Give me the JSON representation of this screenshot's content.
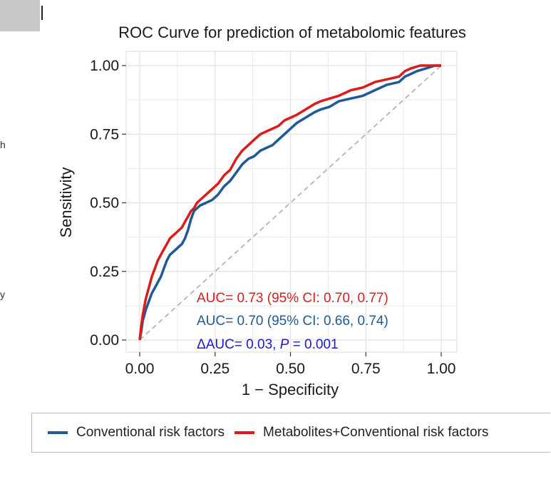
{
  "panel_fragments": {
    "left_1": "h",
    "left_2": "y"
  },
  "colors": {
    "conventional": "#1f5a96",
    "combined": "#d91c1c",
    "delta": "#1a1ac8",
    "diagonal": "#b3b3b3",
    "grid": "#e6e6e6"
  },
  "chart_data": {
    "type": "line",
    "title": "ROC Curve for prediction of metabolomic features",
    "xlabel": "1 − Specificity",
    "ylabel": "Sensitivity",
    "xlim": [
      0,
      1
    ],
    "ylim": [
      0,
      1
    ],
    "xticks": [
      "0.00",
      "0.25",
      "0.50",
      "0.75",
      "1.00"
    ],
    "yticks": [
      "0.00",
      "0.25",
      "0.50",
      "0.75",
      "1.00"
    ],
    "grid": true,
    "reference_line": "diagonal",
    "series": [
      {
        "name": "Conventional risk factors",
        "color_key": "conventional",
        "x": [
          0,
          0.005,
          0.01,
          0.02,
          0.03,
          0.04,
          0.05,
          0.06,
          0.07,
          0.08,
          0.09,
          0.1,
          0.11,
          0.12,
          0.13,
          0.14,
          0.15,
          0.16,
          0.17,
          0.18,
          0.19,
          0.2,
          0.22,
          0.24,
          0.26,
          0.28,
          0.3,
          0.32,
          0.34,
          0.36,
          0.38,
          0.4,
          0.42,
          0.44,
          0.46,
          0.48,
          0.5,
          0.52,
          0.55,
          0.58,
          0.6,
          0.63,
          0.66,
          0.7,
          0.74,
          0.78,
          0.82,
          0.86,
          0.88,
          0.9,
          0.92,
          0.95,
          0.98,
          1.0
        ],
        "y": [
          0,
          0.03,
          0.07,
          0.11,
          0.14,
          0.17,
          0.19,
          0.21,
          0.23,
          0.26,
          0.29,
          0.31,
          0.32,
          0.33,
          0.34,
          0.35,
          0.37,
          0.4,
          0.44,
          0.47,
          0.48,
          0.49,
          0.5,
          0.51,
          0.53,
          0.56,
          0.58,
          0.61,
          0.64,
          0.66,
          0.67,
          0.69,
          0.7,
          0.71,
          0.73,
          0.75,
          0.77,
          0.79,
          0.81,
          0.83,
          0.84,
          0.85,
          0.87,
          0.88,
          0.89,
          0.91,
          0.93,
          0.94,
          0.96,
          0.97,
          0.98,
          0.99,
          1.0,
          1.0
        ]
      },
      {
        "name": "Metabolites+Conventional risk factors",
        "color_key": "combined",
        "x": [
          0,
          0.005,
          0.01,
          0.015,
          0.02,
          0.03,
          0.04,
          0.05,
          0.06,
          0.07,
          0.08,
          0.09,
          0.1,
          0.11,
          0.12,
          0.13,
          0.14,
          0.15,
          0.16,
          0.17,
          0.18,
          0.19,
          0.2,
          0.22,
          0.24,
          0.26,
          0.28,
          0.3,
          0.32,
          0.34,
          0.36,
          0.38,
          0.4,
          0.42,
          0.44,
          0.46,
          0.48,
          0.5,
          0.52,
          0.55,
          0.58,
          0.6,
          0.63,
          0.66,
          0.7,
          0.74,
          0.78,
          0.82,
          0.86,
          0.88,
          0.9,
          0.93,
          0.96,
          1.0
        ],
        "y": [
          0,
          0.05,
          0.09,
          0.12,
          0.15,
          0.19,
          0.23,
          0.26,
          0.29,
          0.31,
          0.33,
          0.35,
          0.37,
          0.38,
          0.39,
          0.4,
          0.41,
          0.43,
          0.45,
          0.47,
          0.48,
          0.5,
          0.51,
          0.53,
          0.55,
          0.57,
          0.6,
          0.62,
          0.66,
          0.69,
          0.71,
          0.73,
          0.75,
          0.76,
          0.77,
          0.78,
          0.8,
          0.81,
          0.82,
          0.84,
          0.86,
          0.87,
          0.88,
          0.89,
          0.91,
          0.92,
          0.94,
          0.95,
          0.96,
          0.98,
          0.99,
          1.0,
          1.0,
          1.0
        ]
      }
    ],
    "annotations": [
      {
        "text": "AUC= 0.73 (95% CI: 0.70, 0.77)",
        "color_key": "combined"
      },
      {
        "text": "AUC= 0.70 (95% CI: 0.66, 0.74)",
        "color_key": "conventional"
      },
      {
        "prefix": "ΔAUC= 0.03, ",
        "italic": "P",
        "suffix": " = 0.001",
        "color_key": "delta"
      }
    ],
    "legend_position": "bottom"
  }
}
